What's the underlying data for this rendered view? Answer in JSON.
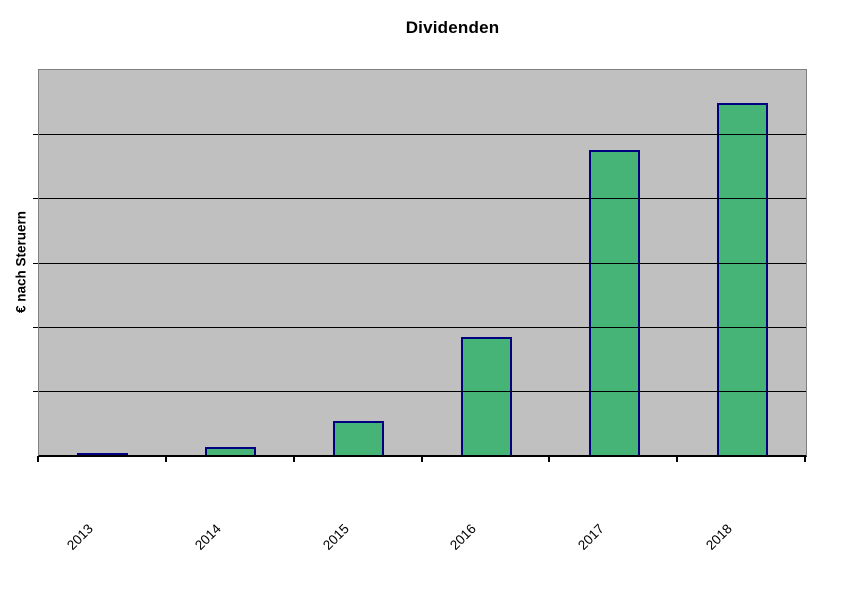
{
  "chart_data": {
    "type": "bar",
    "title": "Dividenden",
    "xlabel": "",
    "ylabel": "€ nach Steruern",
    "categories": [
      "2013",
      "2014",
      "2015",
      "2016",
      "2017",
      "2018"
    ],
    "values": [
      0.3,
      2.1,
      8.8,
      30.7,
      79.3,
      91.4
    ],
    "value_unit": "percent-of-axis-max",
    "ylim": [
      0,
      100
    ],
    "y_tick_labels_visible": false,
    "grid_intervals": 6,
    "grid_on": true,
    "legend": "none",
    "x_label_rotation_deg": 45,
    "colors": {
      "page_bg": "#ffffff",
      "plot_bg": "#c0c0c0",
      "plot_border": "#808080",
      "gridline": "#000000",
      "axis_line": "#000000",
      "bar_fill": "#45b476",
      "bar_border": "#000080",
      "text": "#000000"
    }
  }
}
